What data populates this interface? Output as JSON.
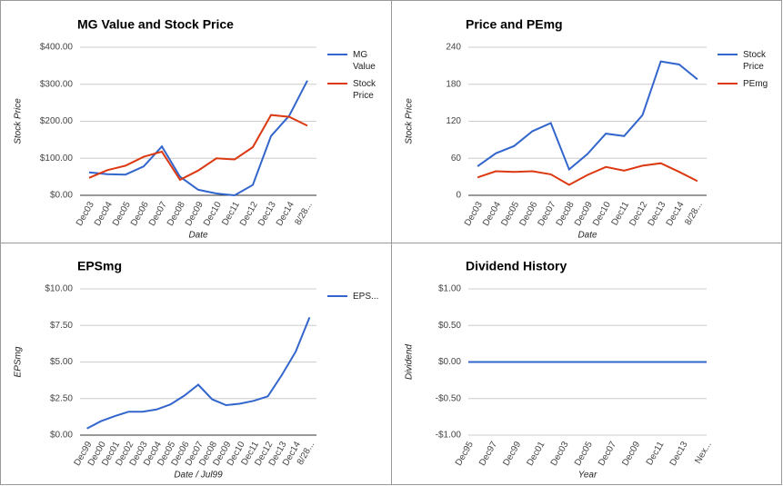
{
  "chart_data": [
    {
      "type": "line",
      "title": "MG Value and Stock Price",
      "x_label": "Date",
      "y_label": "Stock Price",
      "categories": [
        "Dec03",
        "Dec04",
        "Dec05",
        "Dec06",
        "Dec07",
        "Dec08",
        "Dec09",
        "Dec10",
        "Dec11",
        "Dec12",
        "Dec13",
        "Dec14",
        "8/28..."
      ],
      "series": [
        {
          "name": "MG Value",
          "color": "#3366cc",
          "values": [
            62,
            57,
            56,
            78,
            132,
            50,
            15,
            5,
            0,
            28,
            160,
            215,
            310
          ]
        },
        {
          "name": "Stock Price",
          "color": "#dc3912",
          "values": [
            47,
            68,
            80,
            104,
            118,
            42,
            67,
            100,
            97,
            130,
            217,
            212,
            188
          ]
        }
      ],
      "ylim": [
        0,
        400
      ],
      "yticks": [
        {
          "value": 0,
          "label": "$0.00"
        },
        {
          "value": 100,
          "label": "$100.00"
        },
        {
          "value": 200,
          "label": "$200.00"
        },
        {
          "value": 300,
          "label": "$300.00"
        },
        {
          "value": 400,
          "label": "$400.00"
        }
      ],
      "grid": true,
      "legend": "right"
    },
    {
      "type": "line",
      "title": "Price and PEmg",
      "x_label": "Date",
      "y_label": "Stock Price",
      "categories": [
        "Dec03",
        "Dec04",
        "Dec05",
        "Dec06",
        "Dec07",
        "Dec08",
        "Dec09",
        "Dec10",
        "Dec11",
        "Dec12",
        "Dec13",
        "Dec14",
        "8/28..."
      ],
      "series": [
        {
          "name": "Stock Price",
          "color": "#3366cc",
          "values": [
            47,
            68,
            80,
            104,
            117,
            42,
            67,
            100,
            96,
            130,
            217,
            212,
            188
          ]
        },
        {
          "name": "PEmg",
          "color": "#dc3912",
          "values": [
            29,
            39,
            38,
            39,
            34,
            17,
            33,
            46,
            40,
            48,
            52,
            38,
            23
          ]
        }
      ],
      "ylim": [
        0,
        240
      ],
      "yticks": [
        0,
        60,
        120,
        180,
        240
      ],
      "grid": true,
      "legend": "right"
    },
    {
      "type": "line",
      "title": "EPSmg",
      "x_label": "Date / Jul99",
      "y_label": "EPSmg",
      "categories": [
        "Dec99",
        "Dec00",
        "Dec01",
        "Dec02",
        "Dec03",
        "Dec04",
        "Dec05",
        "Dec06",
        "Dec07",
        "Dec08",
        "Dec09",
        "Dec10",
        "Dec11",
        "Dec12",
        "Dec13",
        "Dec14",
        "8/28..."
      ],
      "series": [
        {
          "name": "EPS...",
          "color": "#3366cc",
          "values": [
            0.45,
            0.95,
            1.3,
            1.6,
            1.6,
            1.75,
            2.1,
            2.7,
            3.45,
            2.45,
            2.05,
            2.15,
            2.35,
            2.65,
            4.1,
            5.7,
            8.05
          ]
        }
      ],
      "ylim": [
        0,
        10
      ],
      "yticks": [
        {
          "value": 0,
          "label": "$0.00"
        },
        {
          "value": 2.5,
          "label": "$2.50"
        },
        {
          "value": 5,
          "label": "$5.00"
        },
        {
          "value": 7.5,
          "label": "$7.50"
        },
        {
          "value": 10,
          "label": "$10.00"
        }
      ],
      "grid": true,
      "legend": "right"
    },
    {
      "type": "line",
      "title": "Dividend History",
      "x_label": "Year",
      "y_label": "Dividend",
      "categories": [
        "Dec95",
        null,
        "Dec97",
        null,
        "Dec99",
        null,
        "Dec01",
        null,
        "Dec03",
        null,
        "Dec05",
        null,
        "Dec07",
        null,
        "Dec09",
        null,
        "Dec11",
        null,
        "Dec13",
        null,
        "Nex..."
      ],
      "series": [
        {
          "color": "#3366cc",
          "values": [
            0,
            0,
            0,
            0,
            0,
            0,
            0,
            0,
            0,
            0,
            0,
            0,
            0,
            0,
            0,
            0,
            0,
            0,
            0,
            0,
            0
          ]
        }
      ],
      "ylim": [
        -1,
        1
      ],
      "yticks": [
        {
          "value": -1,
          "label": "-$1.00"
        },
        {
          "value": -0.5,
          "label": "-$0.50"
        },
        {
          "value": 0,
          "label": "$0.00"
        },
        {
          "value": 0.5,
          "label": "$0.50"
        },
        {
          "value": 1,
          "label": "$1.00"
        }
      ],
      "grid": true
    }
  ]
}
